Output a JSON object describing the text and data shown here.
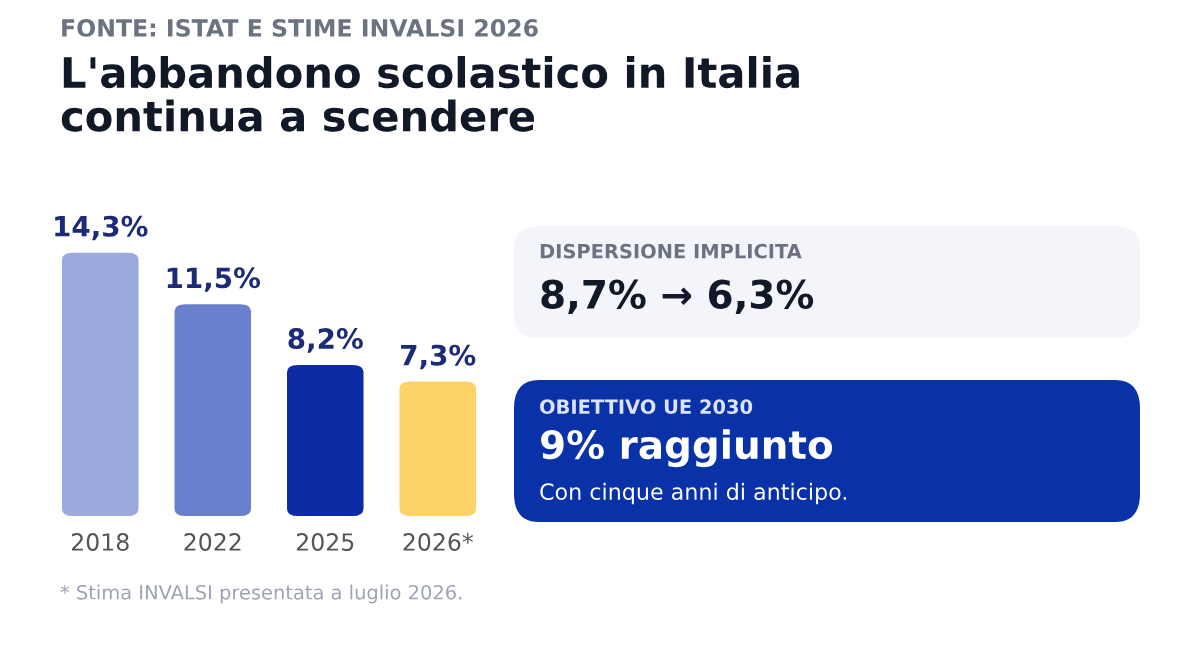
{
  "chart_data": [
    {
      "type": "bar",
      "subtitle": "FONTE: ISTAT E STIME INVALSI 2026",
      "title": "L'abbandono scolastico in Italia\ncontinua a scendere",
      "categories": [
        "2018",
        "2022",
        "2025",
        "2026*"
      ],
      "values": [
        14.3,
        11.5,
        8.2,
        7.3
      ],
      "colors": [
        "#9aaade",
        "#6a80cc",
        "#0d2ba5",
        "#fdd267"
      ],
      "value_labels": [
        "14,3%",
        "11,5%",
        "8,2%",
        "7,3%"
      ],
      "annotations": [
        "* Stima INVALSI presentata a luglio 2026."
      ]
    },
    {
      "type": "other",
      "title": "DISPERSIONE IMPLICITA",
      "annotations": [
        "8,7% → 6,3%"
      ]
    },
    {
      "type": "other",
      "title": "OBIETTIVO UE 2030",
      "annotations": [
        "9% raggiunto",
        "Con cinque anni di anticipo."
      ]
    }
  ]
}
